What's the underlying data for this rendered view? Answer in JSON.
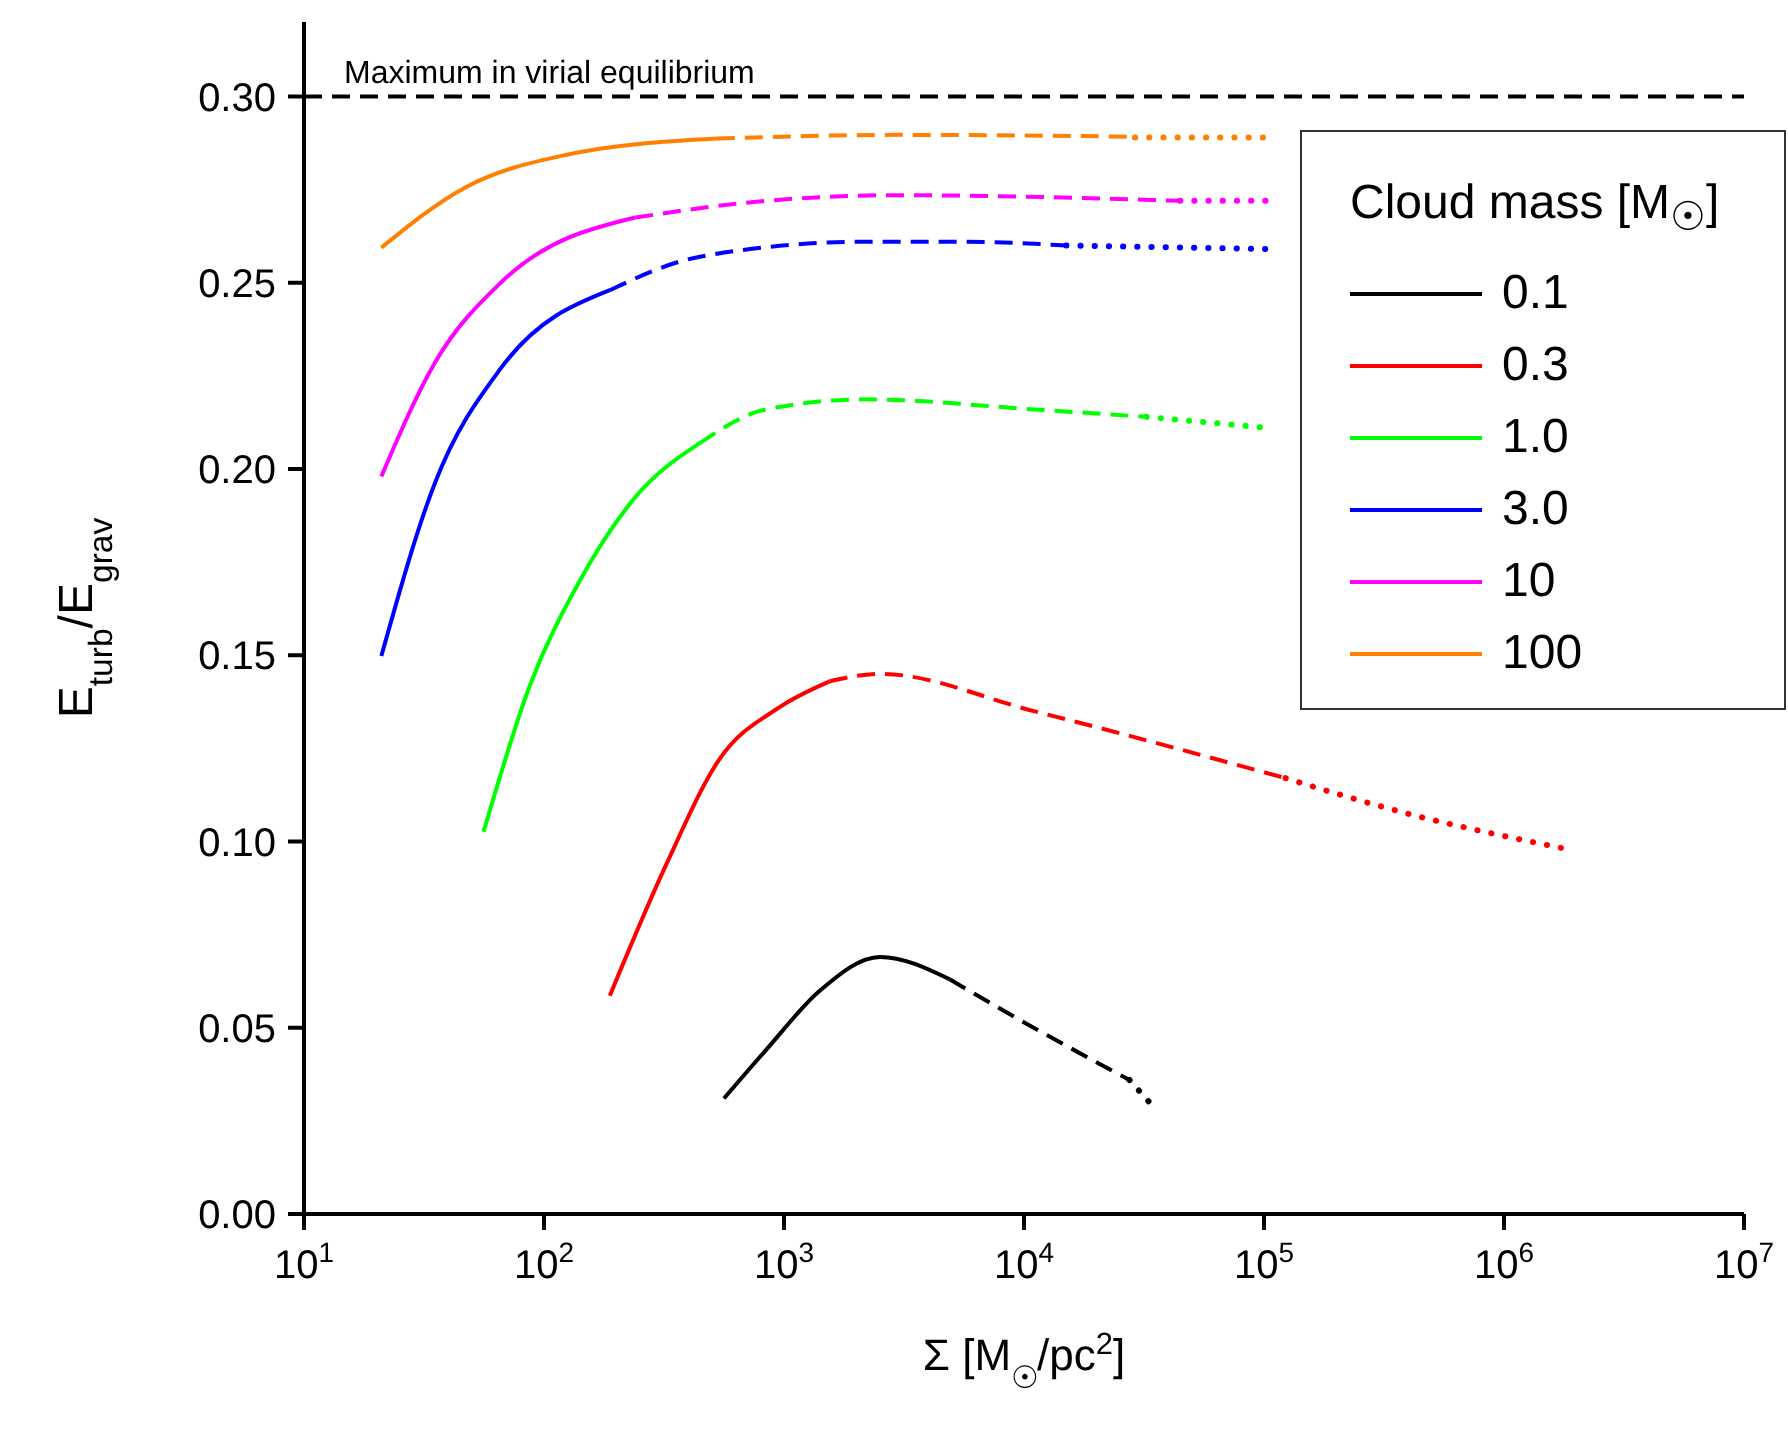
{
  "chart_data": {
    "type": "line",
    "xlabel": "Σ [M$_{☉}$/pc$^{2}$]",
    "ylabel": "E$_{turb}$/E$_{grav}$",
    "legend_title": "Cloud mass [M$_{☉}$]",
    "legend": "top right",
    "log": "x",
    "grid": false,
    "xlim": [
      10,
      10000000
    ],
    "xticks": [
      {
        "value": 10,
        "label": "10$^{1}$"
      },
      {
        "value": 100,
        "label": "10$^{2}$"
      },
      {
        "value": 1000,
        "label": "10$^{3}$"
      },
      {
        "value": 10000,
        "label": "10$^{4}$"
      },
      {
        "value": 100000,
        "label": "10$^{5}$"
      },
      {
        "value": 1000000,
        "label": "10$^{6}$"
      },
      {
        "value": 10000000,
        "label": "10$^{7}$"
      }
    ],
    "ylim": [
      0,
      0.32
    ],
    "yticks": [
      {
        "value": 0,
        "label": "0.00"
      },
      {
        "value": 0.05,
        "label": "0.05"
      },
      {
        "value": 0.1,
        "label": "0.10"
      },
      {
        "value": 0.15,
        "label": "0.15"
      },
      {
        "value": 0.2,
        "label": "0.20"
      },
      {
        "value": 0.25,
        "label": "0.25"
      },
      {
        "value": 0.3,
        "label": "0.30"
      }
    ],
    "ref_lines": [
      {
        "axis": "y",
        "value": 0.3,
        "label": "Maximum in virial equilibrium",
        "color": "#000000",
        "line_style": "dashed"
      }
    ],
    "series": [
      {
        "name": "0.1",
        "color": "#000000",
        "line_style": "solid",
        "x": [
          562,
          841,
          1413,
          2512,
          4900
        ],
        "values": [
          0.031,
          0.044,
          0.06,
          0.069,
          0.063
        ]
      },
      {
        "color": "#000000",
        "line_style": "dashed",
        "x": [
          4900,
          11700,
          27500
        ],
        "values": [
          0.063,
          0.049,
          0.036
        ]
      },
      {
        "color": "#000000",
        "line_style": "dotted",
        "x": [
          27500,
          35500
        ],
        "values": [
          0.036,
          0.028
        ]
      },
      {
        "name": "0.3",
        "color": "#ff0000",
        "line_style": "solid",
        "x": [
          188,
          324,
          537,
          955,
          1550
        ],
        "values": [
          0.0586,
          0.094,
          0.122,
          0.136,
          0.143
        ]
      },
      {
        "color": "#ff0000",
        "line_style": "dashed",
        "x": [
          1550,
          2512,
          11000,
          123000
        ],
        "values": [
          0.143,
          0.145,
          0.135,
          0.117
        ]
      },
      {
        "color": "#ff0000",
        "line_style": "dotted",
        "x": [
          123000,
          370000,
          1820000
        ],
        "values": [
          0.117,
          0.108,
          0.098
        ]
      },
      {
        "name": "1.0",
        "color": "#00ff00",
        "line_style": "solid",
        "x": [
          56,
          87,
          141,
          237,
          447
        ],
        "values": [
          0.1026,
          0.1416,
          0.17,
          0.192,
          0.207
        ]
      },
      {
        "color": "#00ff00",
        "line_style": "dashed",
        "x": [
          447,
          841,
          2190,
          11000,
          32400
        ],
        "values": [
          0.207,
          0.216,
          0.2187,
          0.216,
          0.214
        ]
      },
      {
        "color": "#00ff00",
        "line_style": "dotted",
        "x": [
          32400,
          105000
        ],
        "values": [
          0.214,
          0.211
        ]
      },
      {
        "name": "3.0",
        "color": "#0000ff",
        "line_style": "solid",
        "x": [
          21,
          35,
          66,
          188
        ],
        "values": [
          0.1498,
          0.196,
          0.227,
          0.248
        ]
      },
      {
        "color": "#0000ff",
        "line_style": "dashed",
        "x": [
          188,
          447,
          2190,
          5700,
          15000
        ],
        "values": [
          0.248,
          0.257,
          0.261,
          0.261,
          0.26
        ]
      },
      {
        "color": "#0000ff",
        "line_style": "dotted",
        "x": [
          15000,
          110000
        ],
        "values": [
          0.26,
          0.259
        ]
      },
      {
        "name": "10",
        "color": "#ff00ff",
        "line_style": "solid",
        "x": [
          21,
          35,
          66,
          240
        ],
        "values": [
          0.198,
          0.2284,
          0.25,
          0.2675
        ]
      },
      {
        "color": "#ff00ff",
        "line_style": "dashed",
        "x": [
          240,
          841,
          3000,
          44700
        ],
        "values": [
          0.2675,
          0.272,
          0.2735,
          0.272
        ]
      },
      {
        "color": "#ff00ff",
        "line_style": "dotted",
        "x": [
          44700,
          110000
        ],
        "values": [
          0.272,
          0.272
        ]
      },
      {
        "name": "100",
        "color": "#ff8000",
        "line_style": "solid",
        "x": [
          21,
          47,
          123,
          525
        ],
        "values": [
          0.2594,
          0.2756,
          0.2843,
          0.2887
        ]
      },
      {
        "color": "#ff8000",
        "line_style": "dashed",
        "x": [
          525,
          3000,
          29000
        ],
        "values": [
          0.2887,
          0.2897,
          0.2892
        ]
      },
      {
        "color": "#ff8000",
        "line_style": "dotted",
        "x": [
          29000,
          110000
        ],
        "values": [
          0.289,
          0.289
        ]
      }
    ]
  }
}
